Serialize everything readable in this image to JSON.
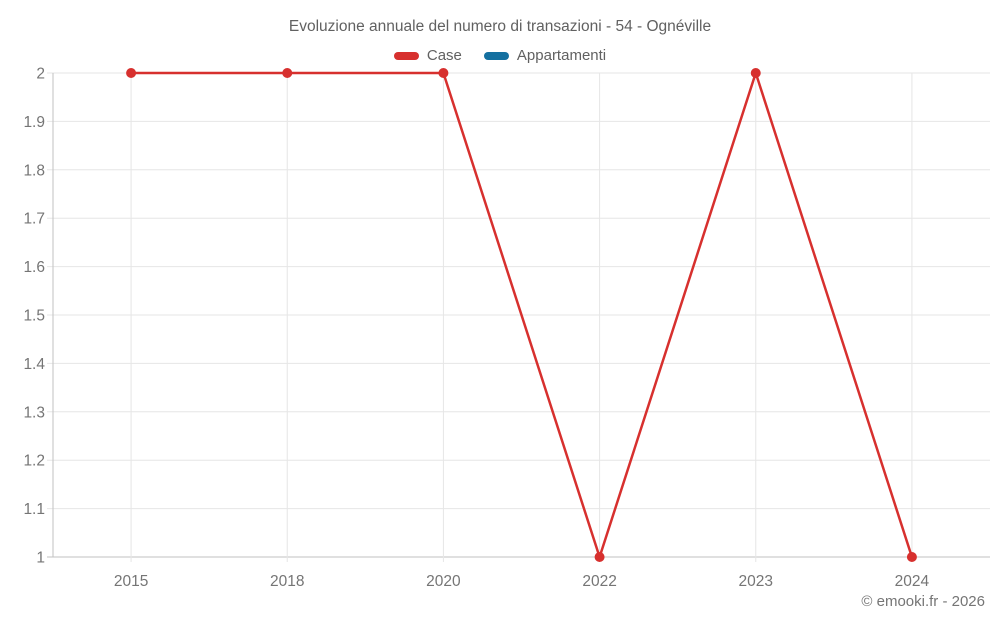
{
  "title": "Evoluzione annuale del numero di transazioni - 54 - Ognéville",
  "credit": "© emooki.fr - 2026",
  "colors": {
    "case_red": "#d7302e",
    "appartamenti_blue": "#1470a0",
    "gridline": "#e6e6e6",
    "axis_line": "#c2c2c2",
    "tick_label": "#757575",
    "title_text": "#616161"
  },
  "legend": {
    "items": [
      {
        "label": "Case",
        "color": "#d7302e"
      },
      {
        "label": "Appartamenti",
        "color": "#1470a0"
      }
    ]
  },
  "chart_data": {
    "type": "line",
    "title": "Evoluzione annuale del numero di transazioni - 54 - Ognéville",
    "categories": [
      "2015",
      "2018",
      "2020",
      "2022",
      "2023",
      "2024"
    ],
    "series": [
      {
        "name": "Case",
        "color": "#d7302e",
        "values": [
          2,
          2,
          2,
          1,
          2,
          1
        ]
      },
      {
        "name": "Appartamenti",
        "color": "#1470a0",
        "values": []
      }
    ],
    "xlabel": "",
    "ylabel": "",
    "ylim": [
      1,
      2
    ],
    "ytick_labels": [
      "1",
      "1.1",
      "1.2",
      "1.3",
      "1.4",
      "1.5",
      "1.6",
      "1.7",
      "1.8",
      "1.9",
      "2"
    ],
    "grid": true,
    "legend_position": "top",
    "marker": "circle"
  }
}
